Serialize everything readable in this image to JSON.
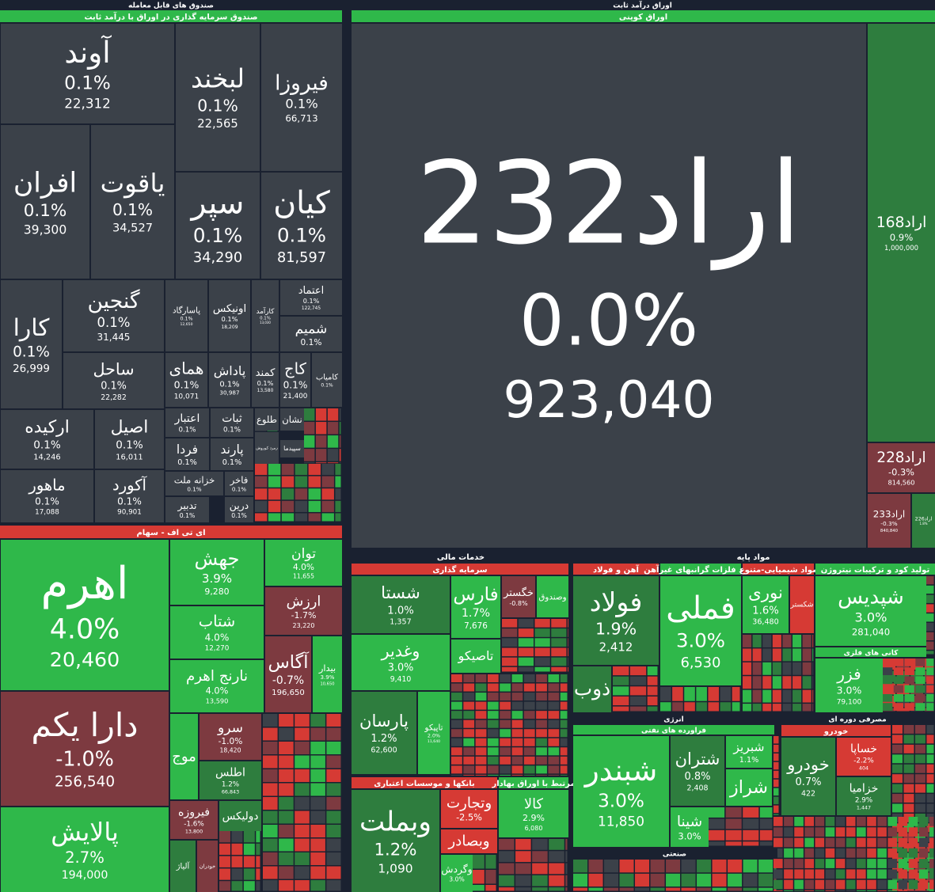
{
  "headers": [
    {
      "text": "صندوق های قابل معامله",
      "color": "#1a2130"
    },
    {
      "text": "صندوق سرمایه گذاری در اوراق با درآمد ثابت",
      "color": "#2fb84a"
    },
    {
      "text": "اوراق درآمد ثابت",
      "color": "#1a2130"
    },
    {
      "text": "اوراق کوپنی",
      "color": "#2fb84a"
    },
    {
      "text": "ای تی اف - سهام",
      "color": "#d63a34"
    },
    {
      "text": "خدمات مالی",
      "color": "#1a2130"
    },
    {
      "text": "سرمایه گذاری",
      "color": "#d63a34"
    },
    {
      "text": "بانکها و موسسات اعتباری",
      "color": "#d63a34"
    },
    {
      "text": "مرتبط با اوراق بهادار",
      "color": "#2fb84a"
    },
    {
      "text": "مواد پایه",
      "color": "#1a2130"
    },
    {
      "text": "آهن و فولاد",
      "color": "#d63a34"
    },
    {
      "text": "تولید فلزات گرانبهای غیرآهن",
      "color": "#2fb84a"
    },
    {
      "text": "مواد شیمیایی-متنوع",
      "color": "#d63a34"
    },
    {
      "text": "تولید کود و ترکیبات نیتروژن",
      "color": "#2fb84a"
    },
    {
      "text": "کانی های فلزی",
      "color": "#2fb84a"
    },
    {
      "text": "انرژی",
      "color": "#1a2130"
    },
    {
      "text": "فراورده های نفتی",
      "color": "#2fb84a"
    },
    {
      "text": "مصرفی دوره ای",
      "color": "#1a2130"
    },
    {
      "text": "خودرو",
      "color": "#d63a34"
    },
    {
      "text": "صنعتی",
      "color": "#1a2130"
    }
  ],
  "tiles": [
    {
      "name": "آوند",
      "change": "0.1%",
      "volume": "22,312",
      "color": "#3b4149"
    },
    {
      "name": "لبخند",
      "change": "0.1%",
      "volume": "22,565",
      "color": "#3b4149"
    },
    {
      "name": "فیروزا",
      "change": "0.1%",
      "volume": "66,713",
      "color": "#3b4149"
    },
    {
      "name": "افران",
      "change": "0.1%",
      "volume": "39,300",
      "color": "#3b4149"
    },
    {
      "name": "یاقوت",
      "change": "0.1%",
      "volume": "34,527",
      "color": "#3b4149"
    },
    {
      "name": "سپر",
      "change": "0.1%",
      "volume": "34,290",
      "color": "#3b4149"
    },
    {
      "name": "کیان",
      "change": "0.1%",
      "volume": "81,597",
      "color": "#3b4149"
    },
    {
      "name": "کارا",
      "change": "0.1%",
      "volume": "26,999",
      "color": "#3b4149"
    },
    {
      "name": "گنجین",
      "change": "0.1%",
      "volume": "31,445",
      "color": "#3b4149"
    },
    {
      "name": "ساحل",
      "change": "0.1%",
      "volume": "22,282",
      "color": "#3b4149"
    },
    {
      "name": "پاسارگاد",
      "change": "0.1%",
      "volume": "12,650",
      "color": "#3b4149"
    },
    {
      "name": "اونیکس",
      "change": "0.1%",
      "volume": "18,209",
      "color": "#3b4149"
    },
    {
      "name": "کارآمد",
      "change": "0.1%",
      "volume": "13,030",
      "color": "#3b4149"
    },
    {
      "name": "اعتماد",
      "change": "0.1%",
      "volume": "122,745",
      "color": "#3b4149"
    },
    {
      "name": "شمیم",
      "change": "0.1%",
      "color": "#3b4149"
    },
    {
      "name": "همای",
      "change": "0.1%",
      "volume": "10,071",
      "color": "#3b4149"
    },
    {
      "name": "پاداش",
      "change": "0.1%",
      "volume": "30,987",
      "color": "#3b4149"
    },
    {
      "name": "کمند",
      "change": "0.1%",
      "volume": "13,580",
      "color": "#3b4149"
    },
    {
      "name": "کاج",
      "change": "0.1%",
      "volume": "21,400",
      "color": "#3b4149"
    },
    {
      "name": "کامیاب",
      "change": "0.1%",
      "color": "#3b4149"
    },
    {
      "name": "ارکیده",
      "change": "0.1%",
      "volume": "14,246",
      "color": "#3b4149"
    },
    {
      "name": "اصیل",
      "change": "0.1%",
      "volume": "16,011",
      "color": "#3b4149"
    },
    {
      "name": "ماهور",
      "change": "0.1%",
      "volume": "17,088",
      "color": "#3b4149"
    },
    {
      "name": "آکورد",
      "change": "0.1%",
      "volume": "90,901",
      "color": "#3b4149"
    },
    {
      "name": "اعتبار",
      "change": "0.1%",
      "color": "#3b4149"
    },
    {
      "name": "ثبات",
      "change": "0.1%",
      "color": "#3b4149"
    },
    {
      "name": "فردا",
      "change": "0.1%",
      "color": "#3b4149"
    },
    {
      "name": "پارند",
      "change": "0.1%",
      "color": "#3b4149"
    },
    {
      "name": "خزانه ملت",
      "change": "0.1%",
      "color": "#3b4149"
    },
    {
      "name": "فاخر",
      "change": "0.1%",
      "color": "#3b4149"
    },
    {
      "name": "تدبیر",
      "change": "0.1%",
      "color": "#3b4149"
    },
    {
      "name": "درین",
      "change": "0.1%",
      "color": "#3b4149"
    },
    {
      "name": "طلوع",
      "color": "#3b4149"
    },
    {
      "name": "نشان",
      "color": "#3b4149"
    },
    {
      "name": "سپیدما",
      "color": "#3b4149"
    },
    {
      "name": "زمرد کوروش",
      "color": "#3b4149"
    },
    {
      "name": "اراد232",
      "change": "0.0%",
      "volume": "923,040",
      "color": "#3b4149"
    },
    {
      "name": "اراد168",
      "change": "0.9%",
      "volume": "1,000,000",
      "color": "#2e7d3e"
    },
    {
      "name": "اراد228",
      "change": "-0.3%",
      "volume": "814,560",
      "color": "#7d3a40"
    },
    {
      "name": "اراد233",
      "change": "-0.3%",
      "volume": "840,840",
      "color": "#7d3a40"
    },
    {
      "name": "اراد226",
      "change": "1.8%",
      "color": "#2e7d3e"
    },
    {
      "name": "اهرم",
      "change": "4.0%",
      "volume": "20,460",
      "color": "#2fb84a"
    },
    {
      "name": "دارا یکم",
      "change": "-1.0%",
      "volume": "256,540",
      "color": "#7d3a40"
    },
    {
      "name": "پالایش",
      "change": "2.7%",
      "volume": "194,000",
      "color": "#2fb84a"
    },
    {
      "name": "جهش",
      "change": "3.9%",
      "volume": "9,280",
      "color": "#2fb84a"
    },
    {
      "name": "توان",
      "change": "4.0%",
      "volume": "11,655",
      "color": "#2fb84a"
    },
    {
      "name": "ارزش",
      "change": "-1.7%",
      "volume": "23,220",
      "color": "#7d3a40"
    },
    {
      "name": "شتاب",
      "change": "4.0%",
      "volume": "12,270",
      "color": "#2fb84a"
    },
    {
      "name": "نارنج اهرم",
      "change": "4.0%",
      "volume": "13,590",
      "color": "#2fb84a"
    },
    {
      "name": "آگاس",
      "change": "-0.7%",
      "volume": "196,650",
      "color": "#7d3a40"
    },
    {
      "name": "بیدار",
      "change": "3.9%",
      "volume": "10,650",
      "color": "#2fb84a"
    },
    {
      "name": "موج",
      "color": "#2fb84a"
    },
    {
      "name": "سرو",
      "change": "-1.0%",
      "volume": "18,420",
      "color": "#7d3a40"
    },
    {
      "name": "اطلس",
      "change": "1.2%",
      "volume": "66,843",
      "color": "#2e7d3e"
    },
    {
      "name": "فیروزه",
      "change": "-1.6%",
      "volume": "13,800",
      "color": "#7d3a40"
    },
    {
      "name": "دولیکس",
      "color": "#2e7d3e"
    },
    {
      "name": "آلیاژ",
      "color": "#2e7d3e"
    },
    {
      "name": "خودران",
      "color": "#7d3a40"
    },
    {
      "name": "شستا",
      "change": "1.0%",
      "volume": "1,357",
      "color": "#2e7d3e"
    },
    {
      "name": "فارس",
      "change": "1.7%",
      "volume": "7,676",
      "color": "#2fb84a"
    },
    {
      "name": "خگستر",
      "change": "-0.8%",
      "color": "#7d3a40"
    },
    {
      "name": "وصندوق",
      "color": "#2fb84a"
    },
    {
      "name": "وغدیر",
      "change": "3.0%",
      "volume": "9,410",
      "color": "#2fb84a"
    },
    {
      "name": "پارسان",
      "change": "1.2%",
      "volume": "62,600",
      "color": "#2e7d3e"
    },
    {
      "name": "تاپیکو",
      "change": "2.0%",
      "volume": "11,640",
      "color": "#2fb84a"
    },
    {
      "name": "تاصیکو",
      "color": "#2fb84a"
    },
    {
      "name": "وبملت",
      "change": "1.2%",
      "volume": "1,090",
      "color": "#2e7d3e"
    },
    {
      "name": "وتجارت",
      "change": "-2.5%",
      "color": "#d63a34"
    },
    {
      "name": "وبصادر",
      "color": "#d63a34"
    },
    {
      "name": "وگردش",
      "change": "3.0%",
      "color": "#2fb84a"
    },
    {
      "name": "کالا",
      "change": "2.9%",
      "volume": "6,080",
      "color": "#2fb84a"
    },
    {
      "name": "فولاد",
      "change": "1.9%",
      "volume": "2,412",
      "color": "#2e7d3e"
    },
    {
      "name": "ذوب",
      "color": "#2e7d3e"
    },
    {
      "name": "فملی",
      "change": "3.0%",
      "volume": "6,530",
      "color": "#2fb84a"
    },
    {
      "name": "نوری",
      "change": "1.6%",
      "volume": "36,480",
      "color": "#2fb84a"
    },
    {
      "name": "شکستر",
      "color": "#d63a34"
    },
    {
      "name": "شپدیس",
      "change": "3.0%",
      "volume": "281,040",
      "color": "#2fb84a"
    },
    {
      "name": "فزر",
      "change": "3.0%",
      "volume": "79,100",
      "color": "#2fb84a"
    },
    {
      "name": "شبندر",
      "change": "3.0%",
      "volume": "11,850",
      "color": "#2fb84a"
    },
    {
      "name": "شتران",
      "change": "0.8%",
      "volume": "2,408",
      "color": "#2e7d3e"
    },
    {
      "name": "شبریز",
      "change": "1.1%",
      "color": "#2fb84a"
    },
    {
      "name": "شراز",
      "color": "#2fb84a"
    },
    {
      "name": "شینا",
      "change": "3.0%",
      "color": "#2fb84a"
    },
    {
      "name": "خودرو",
      "change": "0.7%",
      "volume": "422",
      "color": "#2e7d3e"
    },
    {
      "name": "خساپا",
      "change": "-2.2%",
      "volume": "404",
      "color": "#d63a34"
    },
    {
      "name": "خزامیا",
      "change": "2.9%",
      "volume": "1,447",
      "color": "#2e7d3e"
    }
  ]
}
